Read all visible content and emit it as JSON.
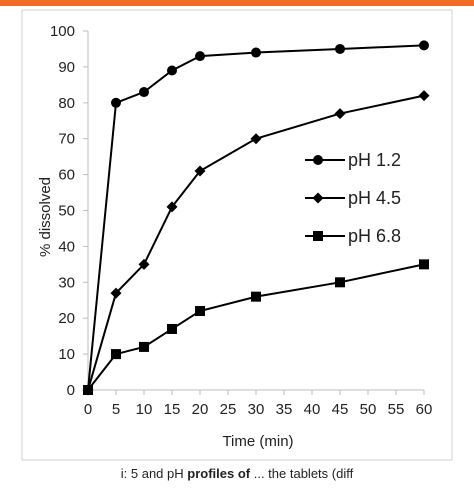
{
  "accent_bar_color": "#f26b21",
  "chart_data": {
    "type": "line",
    "xlabel": "Time (min)",
    "ylabel": "% dissolved",
    "x": [
      0,
      5,
      10,
      15,
      20,
      25,
      30,
      35,
      40,
      45,
      50,
      55,
      60
    ],
    "x_ticks": [
      0,
      5,
      10,
      15,
      20,
      25,
      30,
      35,
      40,
      45,
      50,
      55,
      60
    ],
    "xlim": [
      0,
      60
    ],
    "ylim": [
      0,
      100
    ],
    "y_ticks": [
      0,
      10,
      20,
      30,
      40,
      50,
      60,
      70,
      80,
      90,
      100
    ],
    "grid": false,
    "legend_position": "right",
    "series": [
      {
        "name": "pH 1.2",
        "marker": "circle",
        "color": "#000000",
        "points": [
          [
            0,
            0
          ],
          [
            5,
            80
          ],
          [
            10,
            83
          ],
          [
            15,
            89
          ],
          [
            20,
            93
          ],
          [
            30,
            94
          ],
          [
            45,
            95
          ],
          [
            60,
            96
          ]
        ]
      },
      {
        "name": "pH 4.5",
        "marker": "diamond",
        "color": "#000000",
        "points": [
          [
            0,
            0
          ],
          [
            5,
            27
          ],
          [
            10,
            35
          ],
          [
            15,
            51
          ],
          [
            20,
            61
          ],
          [
            30,
            70
          ],
          [
            45,
            77
          ],
          [
            60,
            82
          ]
        ]
      },
      {
        "name": "pH 6.8",
        "marker": "square",
        "color": "#000000",
        "points": [
          [
            0,
            0
          ],
          [
            5,
            10
          ],
          [
            10,
            12
          ],
          [
            15,
            17
          ],
          [
            20,
            22
          ],
          [
            30,
            26
          ],
          [
            45,
            30
          ],
          [
            60,
            35
          ]
        ]
      }
    ]
  },
  "caption": {
    "pre": "i: 5 and pH",
    "bold": "profiles of",
    "post": "... the tablets (diff"
  }
}
